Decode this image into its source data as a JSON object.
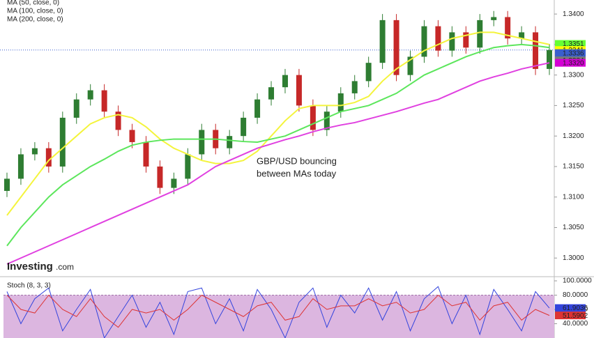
{
  "chart_data": [
    {
      "type": "candlestick",
      "legend": [
        "MA (50, close, 0)",
        "MA (100, close, 0)",
        "MA (200, close, 0)"
      ],
      "annotation": [
        "GBP/USD bouncing",
        "between MAs today"
      ],
      "logo": "Investing",
      "logo_suffix": ".com",
      "up_color": "#2e7d32",
      "down_color": "#c62828",
      "open": [
        1.311,
        1.313,
        1.317,
        1.318,
        1.315,
        1.323,
        1.326,
        1.3275,
        1.324,
        1.321,
        1.319,
        1.315,
        1.3115,
        1.313,
        1.317,
        1.321,
        1.318,
        1.32,
        1.323,
        1.326,
        1.328,
        1.33,
        1.325,
        1.321,
        1.324,
        1.327,
        1.329,
        1.332,
        1.339,
        1.33,
        1.333,
        1.338,
        1.334,
        1.337,
        1.3345,
        1.339,
        1.3395,
        1.336,
        1.337,
        1.331
      ],
      "high": [
        1.314,
        1.318,
        1.319,
        1.319,
        1.324,
        1.327,
        1.3285,
        1.3285,
        1.325,
        1.322,
        1.32,
        1.316,
        1.314,
        1.318,
        1.322,
        1.322,
        1.321,
        1.324,
        1.327,
        1.329,
        1.331,
        1.331,
        1.326,
        1.325,
        1.328,
        1.33,
        1.333,
        1.34,
        1.34,
        1.334,
        1.339,
        1.339,
        1.338,
        1.338,
        1.34,
        1.3405,
        1.3405,
        1.338,
        1.338,
        1.3351
      ],
      "low": [
        1.31,
        1.312,
        1.316,
        1.314,
        1.314,
        1.322,
        1.325,
        1.323,
        1.32,
        1.318,
        1.314,
        1.3105,
        1.3105,
        1.312,
        1.316,
        1.317,
        1.317,
        1.319,
        1.322,
        1.325,
        1.327,
        1.324,
        1.32,
        1.32,
        1.323,
        1.326,
        1.328,
        1.331,
        1.329,
        1.329,
        1.332,
        1.333,
        1.333,
        1.3335,
        1.3335,
        1.338,
        1.335,
        1.335,
        1.33,
        1.33
      ],
      "close": [
        1.313,
        1.317,
        1.318,
        1.315,
        1.323,
        1.326,
        1.3275,
        1.324,
        1.321,
        1.319,
        1.315,
        1.3115,
        1.313,
        1.317,
        1.321,
        1.318,
        1.32,
        1.323,
        1.326,
        1.328,
        1.33,
        1.325,
        1.321,
        1.324,
        1.327,
        1.329,
        1.332,
        1.339,
        1.33,
        1.333,
        1.338,
        1.334,
        1.337,
        1.3345,
        1.339,
        1.3395,
        1.336,
        1.337,
        1.331,
        1.3341
      ],
      "series": [
        {
          "name": "MA (50, close, 0)",
          "color": "#f4f43c",
          "values": [
            1.307,
            1.31,
            1.313,
            1.316,
            1.318,
            1.32,
            1.322,
            1.323,
            1.3235,
            1.323,
            1.3215,
            1.3195,
            1.318,
            1.317,
            1.316,
            1.3155,
            1.3155,
            1.316,
            1.3175,
            1.32,
            1.3225,
            1.3245,
            1.325,
            1.325,
            1.325,
            1.3255,
            1.3265,
            1.329,
            1.331,
            1.3325,
            1.334,
            1.335,
            1.336,
            1.3365,
            1.337,
            1.337,
            1.3365,
            1.336,
            1.3355,
            1.335
          ]
        },
        {
          "name": "MA (100, close, 0)",
          "color": "#5ce65c",
          "values": [
            1.302,
            1.305,
            1.3075,
            1.31,
            1.312,
            1.3135,
            1.315,
            1.3162,
            1.3175,
            1.3185,
            1.319,
            1.3193,
            1.3195,
            1.3195,
            1.3195,
            1.3195,
            1.3193,
            1.3191,
            1.319,
            1.3195,
            1.32,
            1.321,
            1.322,
            1.323,
            1.324,
            1.3245,
            1.325,
            1.326,
            1.327,
            1.3285,
            1.33,
            1.331,
            1.332,
            1.333,
            1.3338,
            1.3345,
            1.3348,
            1.335,
            1.3348,
            1.3345
          ]
        },
        {
          "name": "MA (200, close, 0)",
          "color": "#e040e0",
          "values": [
            1.299,
            1.3,
            1.301,
            1.302,
            1.303,
            1.304,
            1.305,
            1.306,
            1.307,
            1.308,
            1.309,
            1.31,
            1.311,
            1.312,
            1.3135,
            1.315,
            1.316,
            1.317,
            1.318,
            1.3187,
            1.3194,
            1.32,
            1.3207,
            1.3213,
            1.3218,
            1.3222,
            1.3228,
            1.3234,
            1.324,
            1.3247,
            1.3254,
            1.326,
            1.327,
            1.328,
            1.329,
            1.3297,
            1.3303,
            1.331,
            1.3315,
            1.332
          ]
        }
      ],
      "ylim": [
        1.297,
        1.3423
      ],
      "yticks": [
        {
          "value": 1.34,
          "label": "1.3400"
        },
        {
          "value": 1.335,
          "label": "1.3350"
        },
        {
          "value": 1.33,
          "label": "1.3300"
        },
        {
          "value": 1.325,
          "label": "1.3250"
        },
        {
          "value": 1.32,
          "label": "1.3200"
        },
        {
          "value": 1.315,
          "label": "1.3150"
        },
        {
          "value": 1.31,
          "label": "1.3100"
        },
        {
          "value": 1.305,
          "label": "1.3050"
        },
        {
          "value": 1.3,
          "label": "1.3000"
        }
      ],
      "tags": [
        {
          "value": 1.3351,
          "label": "1.3351",
          "color": "#66ff33"
        },
        {
          "value": 1.3341,
          "label": "1.3341",
          "color": "#ffff00"
        },
        {
          "value": 1.3336,
          "label": "1.3336",
          "color": "#3a5fcd"
        },
        {
          "value": 1.3324,
          "label": "1.3324",
          "color": "#7a7a7a"
        },
        {
          "value": 1.332,
          "label": "1.3320",
          "color": "#d400d4"
        }
      ]
    },
    {
      "type": "line",
      "title": "Stoch (8, 3, 3)",
      "band": [
        20,
        80
      ],
      "series": [
        {
          "color": "#3344dd",
          "values": [
            85,
            40,
            75,
            90,
            30,
            60,
            88,
            20,
            50,
            80,
            35,
            70,
            25,
            85,
            90,
            40,
            75,
            30,
            88,
            60,
            20,
            70,
            90,
            35,
            80,
            55,
            90,
            45,
            85,
            30,
            75,
            92,
            40,
            80,
            25,
            88,
            60,
            30,
            85,
            61.9036
          ]
        },
        {
          "color": "#dd3333",
          "values": [
            80,
            60,
            55,
            80,
            60,
            50,
            75,
            50,
            35,
            60,
            55,
            60,
            45,
            60,
            80,
            70,
            60,
            50,
            65,
            70,
            45,
            50,
            75,
            60,
            65,
            65,
            75,
            65,
            70,
            55,
            60,
            80,
            65,
            70,
            45,
            65,
            70,
            45,
            60,
            51.5902
          ]
        }
      ],
      "ylim": [
        20,
        100
      ],
      "yticks": [
        {
          "value": 100,
          "label": "100.0000"
        },
        {
          "value": 80,
          "label": "80.0000"
        },
        {
          "value": 60,
          "label": "60.0000"
        },
        {
          "value": 40,
          "label": "40.0000"
        }
      ],
      "tags": [
        {
          "value": 61.9036,
          "label": "61.9036",
          "color": "#3344dd"
        },
        {
          "value": 51.5902,
          "label": "51.5902",
          "color": "#dd3333"
        }
      ]
    }
  ]
}
